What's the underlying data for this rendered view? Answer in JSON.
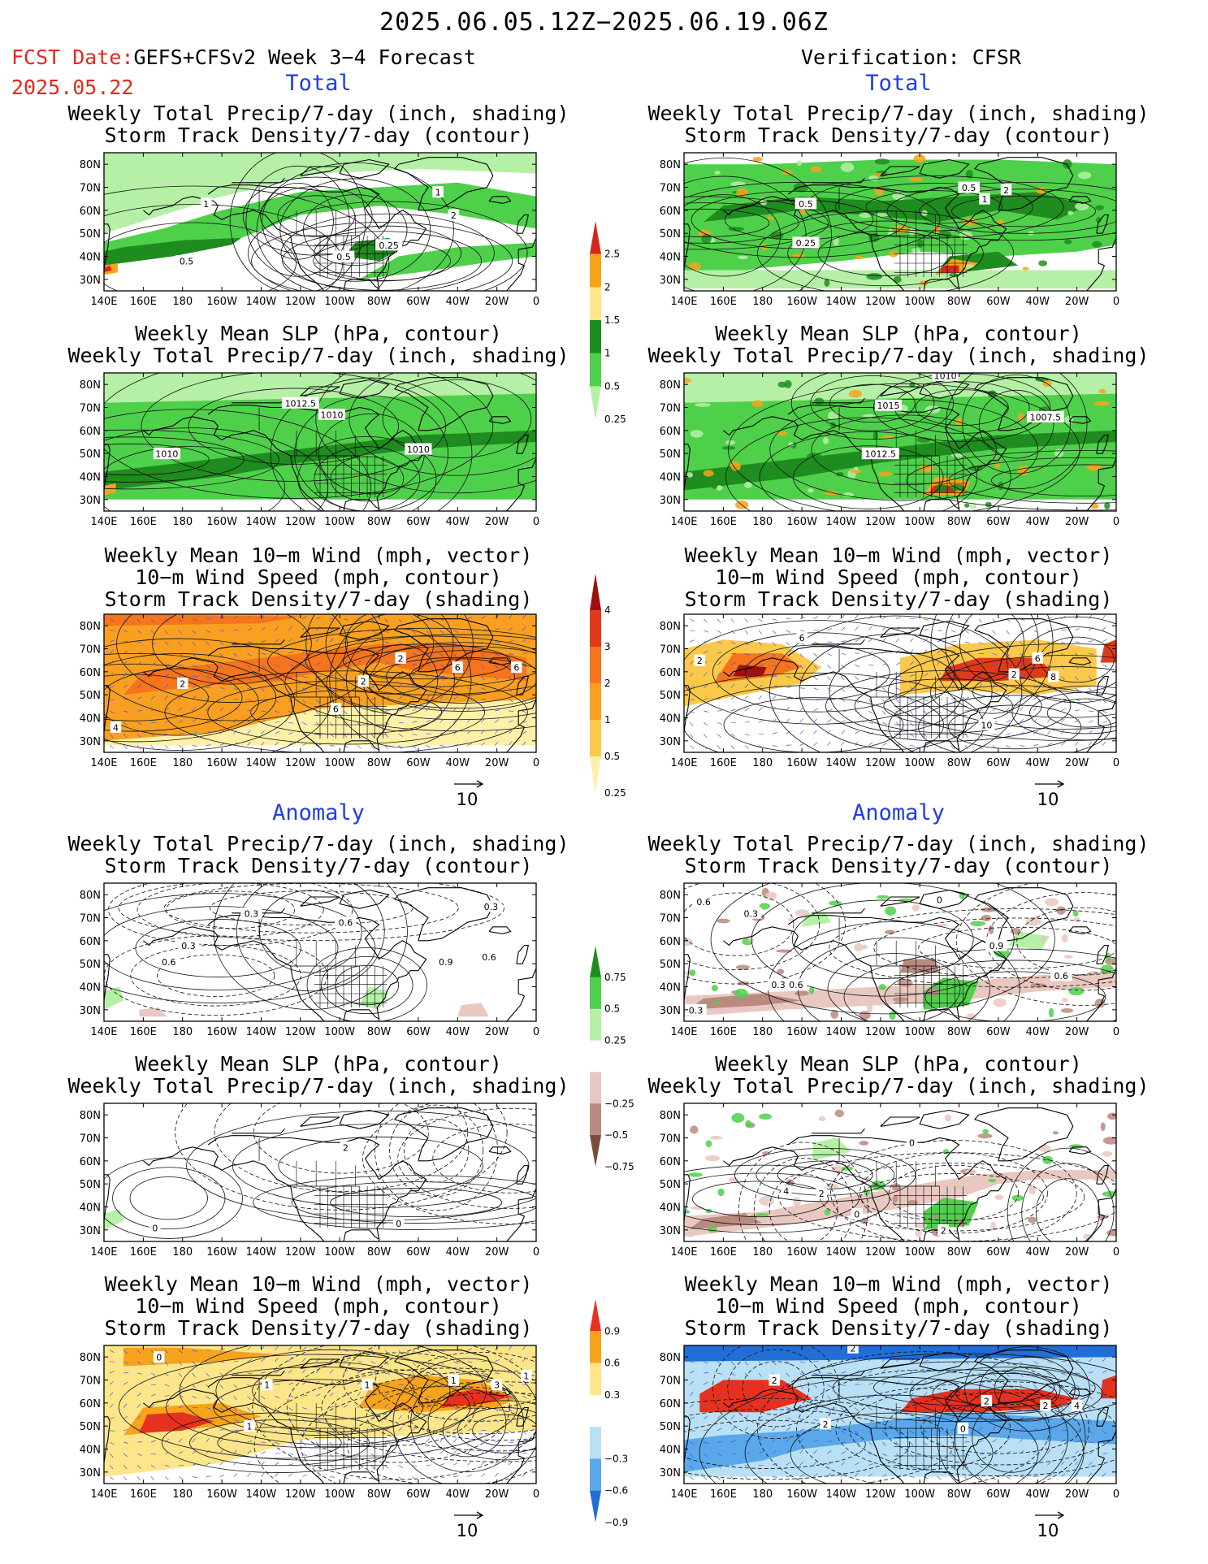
{
  "header": {
    "title": "2025.06.05.12Z−2025.06.19.06Z",
    "fcst_label": "FCST Date:",
    "fcst_model": "GEFS+CFSv2 Week 3−4 Forecast",
    "fcst_date": "2025.05.22",
    "verification": "Verification: CFSR"
  },
  "sections": {
    "total": "Total",
    "anomaly": "Anomaly"
  },
  "titles": {
    "precip_storm": [
      "Weekly Total Precip/7-day (inch, shading)",
      "Storm Track Density/7-day (contour)"
    ],
    "slp_precip": [
      "Weekly Mean SLP (hPa, contour)",
      "Weekly Total Precip/7-day (inch, shading)"
    ],
    "wind": [
      "Weekly Mean 10−m Wind (mph, vector)",
      "10−m Wind Speed (mph, contour)",
      "Storm Track Density/7-day (shading)"
    ]
  },
  "map_axes": {
    "lat_labels": [
      "80N",
      "70N",
      "60N",
      "50N",
      "40N",
      "30N"
    ],
    "lon_labels": [
      "140E",
      "160E",
      "180",
      "160W",
      "140W",
      "120W",
      "100W",
      "80W",
      "60W",
      "40W",
      "20W",
      "0"
    ]
  },
  "vector_ref": "10",
  "colorbars": {
    "total_precip": {
      "labels": [
        "2.5",
        "2",
        "1.5",
        "1",
        "0.5",
        "0.25"
      ],
      "colors": [
        "#d7261a",
        "#f7a31c",
        "#fde58a",
        "#1e8c1e",
        "#4fd04b",
        "#b5f0a6"
      ]
    },
    "total_storm": {
      "labels": [
        "4",
        "3",
        "2",
        "1",
        "0.5",
        "0.25"
      ],
      "colors": [
        "#9e0f0f",
        "#e03a18",
        "#f5741c",
        "#f9a021",
        "#fbc94a",
        "#fdf1a9"
      ]
    },
    "anom_precip": {
      "labels": [
        "0.75",
        "0.5",
        "0.25",
        "−0.25",
        "−0.5",
        "−0.75"
      ],
      "colors": [
        "#1e8c1e",
        "#4fd04b",
        "#b5f0a6",
        "#ffffff",
        "#e8c8c0",
        "#b98a7f",
        "#7a4a3a"
      ]
    },
    "anom_storm": {
      "labels": [
        "0.9",
        "0.6",
        "0.3",
        "−0.3",
        "−0.6",
        "−0.9"
      ],
      "colors": [
        "#e8301c",
        "#f7a31c",
        "#fde58a",
        "#ffffff",
        "#b9e0f5",
        "#5aa8ea",
        "#1f6fd6"
      ]
    },
    "total_precip_sizes": [
      0.5,
      1,
      1,
      1,
      1,
      1
    ],
    "anom_precip_sizes": [
      0.5,
      1,
      1,
      1,
      1,
      1,
      0.5
    ]
  },
  "panels": [
    {
      "id": "t-precip-fc",
      "labels": [
        {
          "t": "1",
          "lon": 192,
          "lat": 63
        },
        {
          "t": "0.5",
          "lon": 182,
          "lat": 38
        },
        {
          "t": "2",
          "lon": 318,
          "lat": 58
        },
        {
          "t": "1",
          "lon": 310,
          "lat": 68
        },
        {
          "t": "0.5",
          "lon": 262,
          "lat": 40
        },
        {
          "t": "0.25",
          "lon": 285,
          "lat": 45
        }
      ]
    },
    {
      "id": "t-precip-ob",
      "labels": [
        {
          "t": "0.5",
          "lon": 202,
          "lat": 63
        },
        {
          "t": "0.25",
          "lon": 202,
          "lat": 46
        },
        {
          "t": "0.5",
          "lon": 285,
          "lat": 70
        },
        {
          "t": "1",
          "lon": 293,
          "lat": 65
        },
        {
          "t": "2",
          "lon": 304,
          "lat": 69
        }
      ]
    },
    {
      "id": "t-slp-fc",
      "labels": [
        {
          "t": "1012.5",
          "lon": 240,
          "lat": 72
        },
        {
          "t": "1010",
          "lon": 256,
          "lat": 67
        },
        {
          "t": "1010",
          "lon": 172,
          "lat": 50
        },
        {
          "t": "1010",
          "lon": 300,
          "lat": 52
        }
      ]
    },
    {
      "id": "t-slp-ob",
      "labels": [
        {
          "t": "1010",
          "lon": 273,
          "lat": 84
        },
        {
          "t": "1015",
          "lon": 244,
          "lat": 71
        },
        {
          "t": "1007.5",
          "lon": 324,
          "lat": 66
        },
        {
          "t": "1012.5",
          "lon": 240,
          "lat": 50
        }
      ]
    },
    {
      "id": "t-wind-fc",
      "labels": [
        {
          "t": "2",
          "lon": 180,
          "lat": 55
        },
        {
          "t": "2",
          "lon": 272,
          "lat": 56
        },
        {
          "t": "2",
          "lon": 291,
          "lat": 66
        },
        {
          "t": "6",
          "lon": 320,
          "lat": 62
        },
        {
          "t": "6",
          "lon": 350,
          "lat": 62
        },
        {
          "t": "4",
          "lon": 146,
          "lat": 36
        },
        {
          "t": "6",
          "lon": 258,
          "lat": 44
        }
      ]
    },
    {
      "id": "t-wind-ob",
      "labels": [
        {
          "t": "2",
          "lon": 148,
          "lat": 65
        },
        {
          "t": "6",
          "lon": 200,
          "lat": 75
        },
        {
          "t": "2",
          "lon": 308,
          "lat": 59
        },
        {
          "t": "8",
          "lon": 328,
          "lat": 58
        },
        {
          "t": "10",
          "lon": 294,
          "lat": 37
        },
        {
          "t": "6",
          "lon": 320,
          "lat": 66
        }
      ]
    },
    {
      "id": "a-precip-fc",
      "labels": [
        {
          "t": "0.3",
          "lon": 215,
          "lat": 72
        },
        {
          "t": "0.6",
          "lon": 173,
          "lat": 51
        },
        {
          "t": "0.3",
          "lon": 183,
          "lat": 58
        },
        {
          "t": "0.6",
          "lon": 263,
          "lat": 68
        },
        {
          "t": "0.9",
          "lon": 314,
          "lat": 51
        },
        {
          "t": "0.6",
          "lon": 336,
          "lat": 53
        },
        {
          "t": "0.3",
          "lon": 337,
          "lat": 75
        }
      ]
    },
    {
      "id": "a-precip-ob",
      "labels": [
        {
          "t": "0.6",
          "lon": 150,
          "lat": 77
        },
        {
          "t": "0.3",
          "lon": 174,
          "lat": 72
        },
        {
          "t": "0.3",
          "lon": 146,
          "lat": 30
        },
        {
          "t": "0.3",
          "lon": 188,
          "lat": 41
        },
        {
          "t": "0.6",
          "lon": 197,
          "lat": 41
        },
        {
          "t": "0.9",
          "lon": 299,
          "lat": 58
        },
        {
          "t": "0.6",
          "lon": 332,
          "lat": 45
        },
        {
          "t": "0",
          "lon": 270,
          "lat": 78
        }
      ]
    },
    {
      "id": "a-slp-fc",
      "labels": [
        {
          "t": "0",
          "lon": 166,
          "lat": 31
        },
        {
          "t": "2",
          "lon": 263,
          "lat": 66
        },
        {
          "t": "0",
          "lon": 290,
          "lat": 33
        }
      ]
    },
    {
      "id": "a-slp-ob",
      "labels": [
        {
          "t": "0",
          "lon": 256,
          "lat": 68
        },
        {
          "t": "4",
          "lon": 192,
          "lat": 47
        },
        {
          "t": "2",
          "lon": 210,
          "lat": 46
        },
        {
          "t": "2",
          "lon": 272,
          "lat": 30
        },
        {
          "t": "0",
          "lon": 228,
          "lat": 37
        }
      ]
    },
    {
      "id": "a-wind-fc",
      "labels": [
        {
          "t": "0",
          "lon": 168,
          "lat": 80
        },
        {
          "t": "1",
          "lon": 223,
          "lat": 68
        },
        {
          "t": "1",
          "lon": 274,
          "lat": 68
        },
        {
          "t": "1",
          "lon": 318,
          "lat": 70
        },
        {
          "t": "3",
          "lon": 340,
          "lat": 68
        },
        {
          "t": "1",
          "lon": 214,
          "lat": 50
        },
        {
          "t": "1",
          "lon": 355,
          "lat": 72
        }
      ]
    },
    {
      "id": "a-wind-ob",
      "labels": [
        {
          "t": "2",
          "lon": 226,
          "lat": 84
        },
        {
          "t": "2",
          "lon": 186,
          "lat": 70
        },
        {
          "t": "2",
          "lon": 294,
          "lat": 61
        },
        {
          "t": "2",
          "lon": 324,
          "lat": 59
        },
        {
          "t": "4",
          "lon": 340,
          "lat": 59
        },
        {
          "t": "2",
          "lon": 212,
          "lat": 51
        },
        {
          "t": "0",
          "lon": 282,
          "lat": 49
        }
      ]
    }
  ]
}
